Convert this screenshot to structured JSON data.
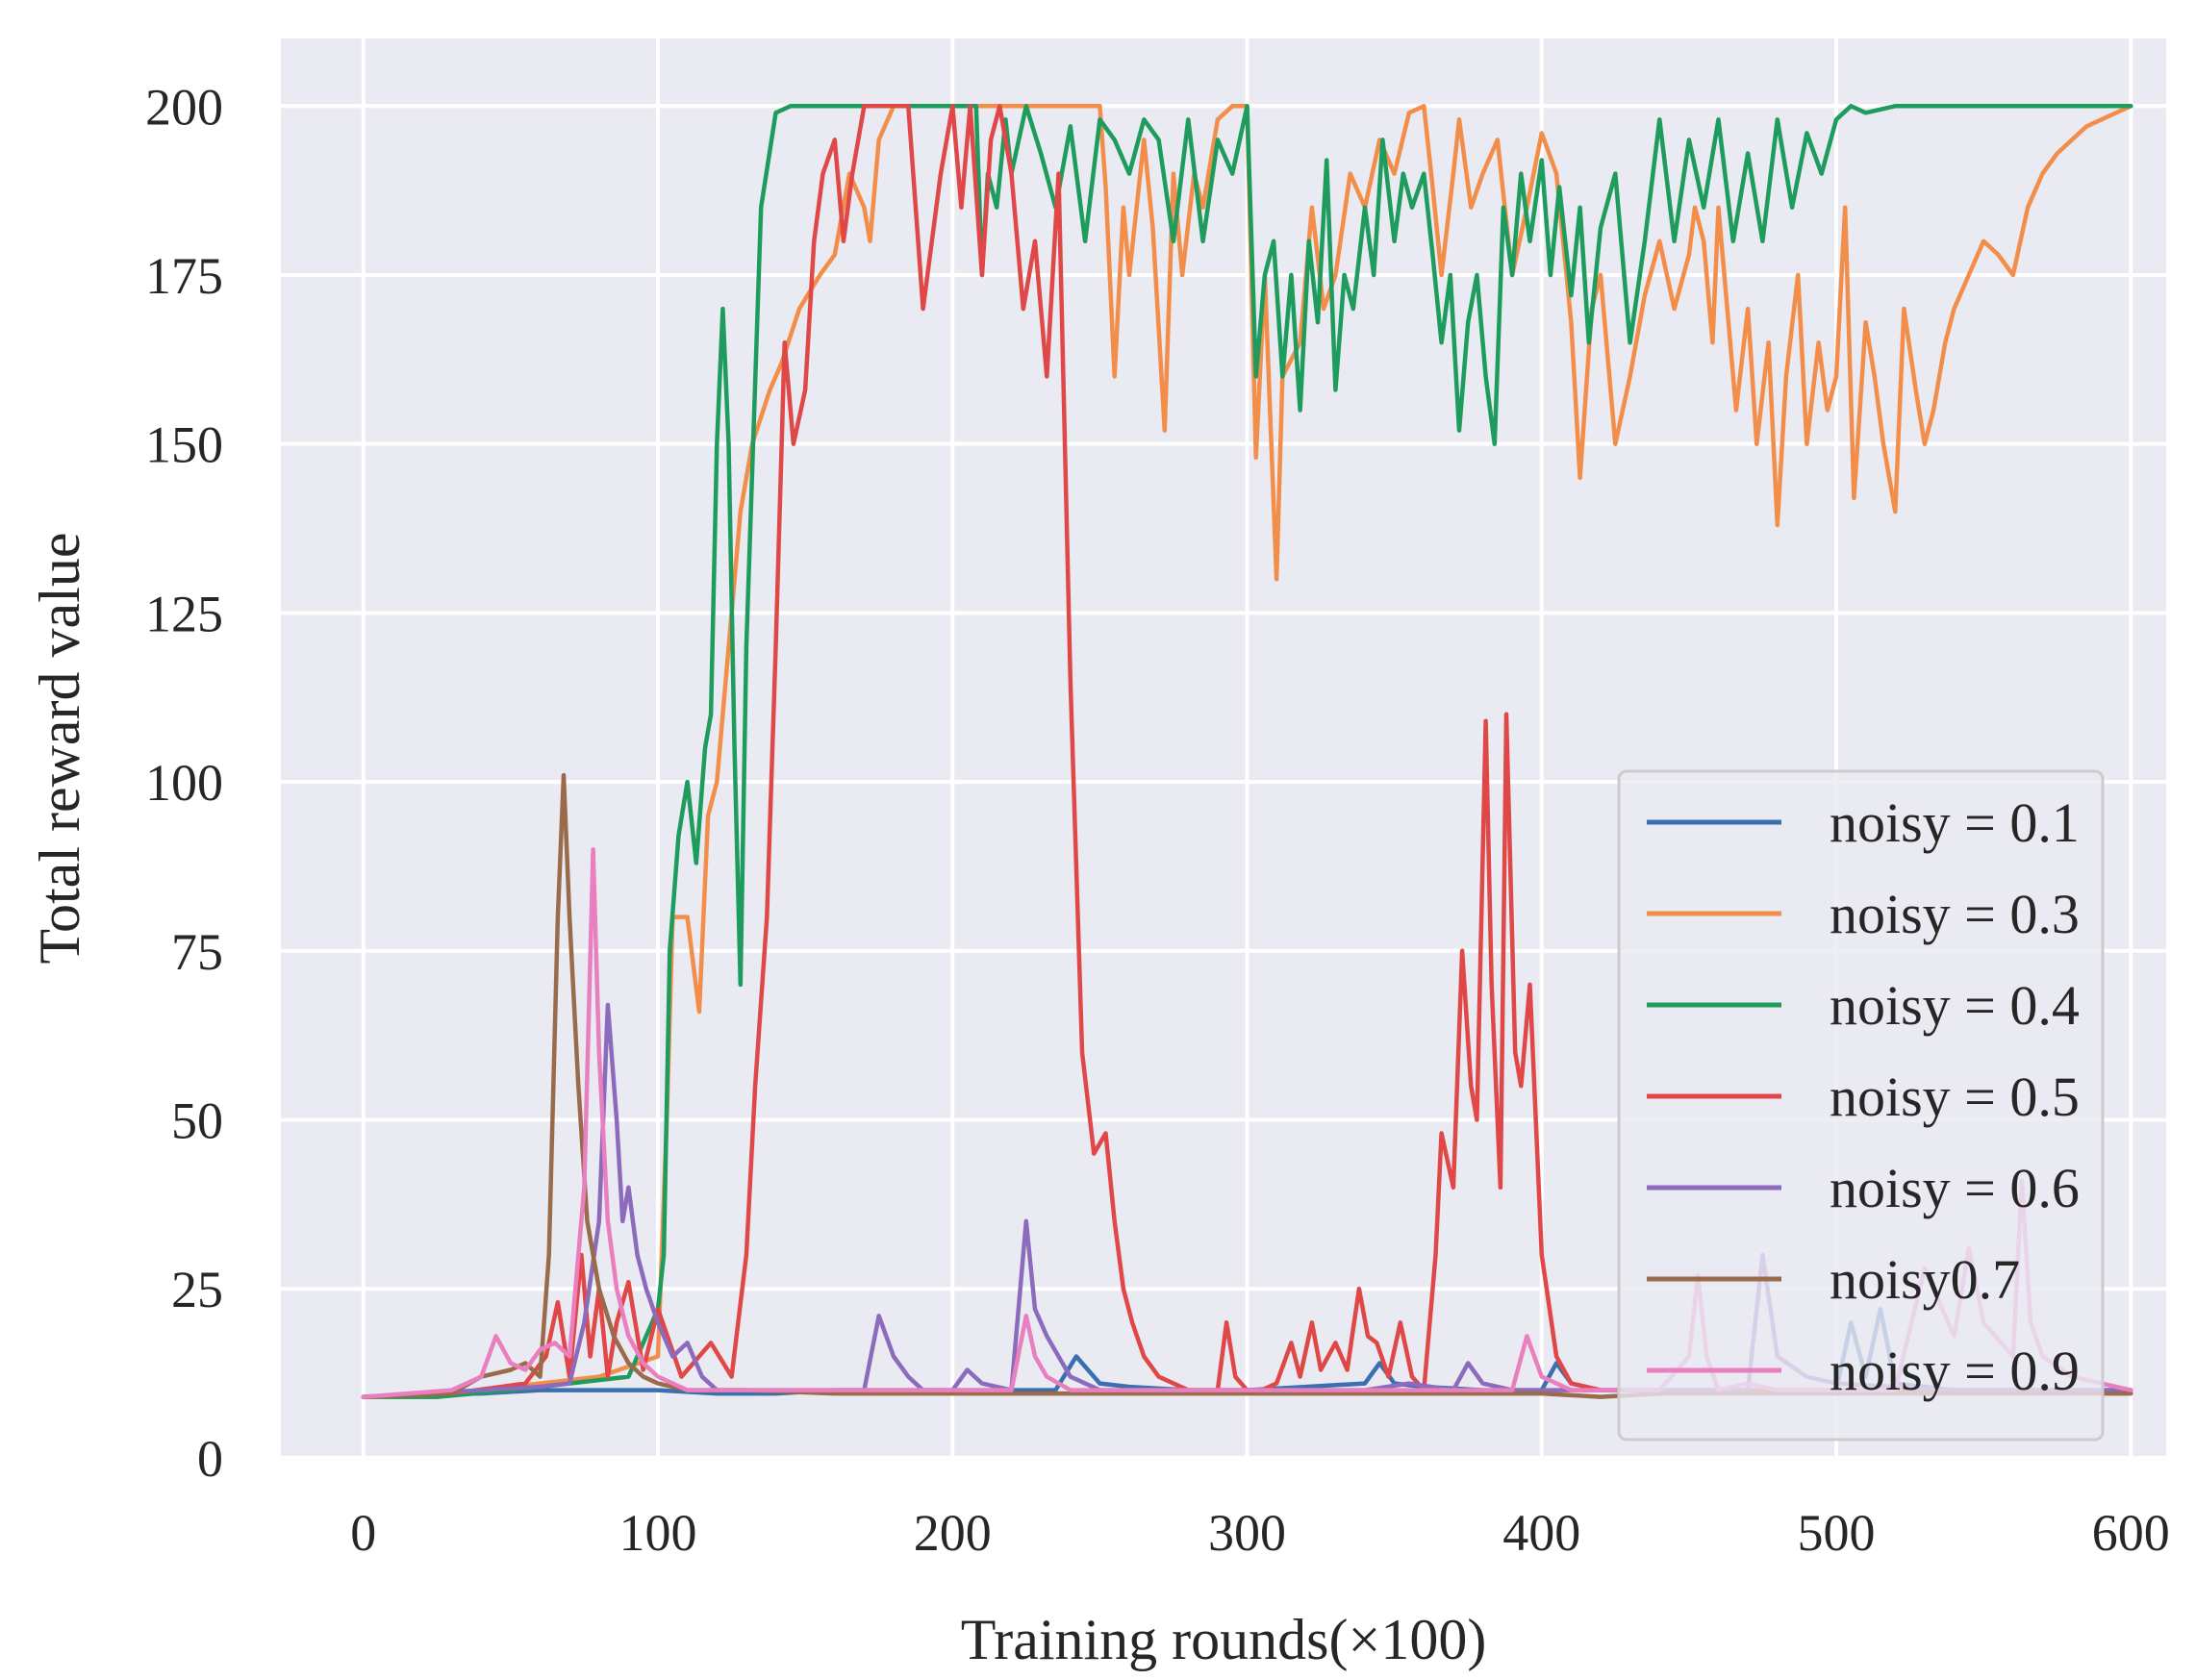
{
  "chart_data": {
    "type": "line",
    "title": "",
    "xlabel": "Training rounds(×100)",
    "ylabel": "Total reward value",
    "xlim": [
      -28,
      612
    ],
    "ylim": [
      -0.3,
      210
    ],
    "xticks": [
      0,
      100,
      200,
      300,
      400,
      500,
      600
    ],
    "xtick_labels": [
      "0",
      "100",
      "200",
      "300",
      "400",
      "500",
      "600"
    ],
    "yticks": [
      0,
      25,
      50,
      75,
      100,
      125,
      150,
      175,
      200
    ],
    "ytick_labels": [
      "0",
      "25",
      "50",
      "75",
      "100",
      "125",
      "150",
      "175",
      "200"
    ],
    "grid": true,
    "legend_position": "lower-right",
    "series": [
      {
        "name": "noisy = 0.1",
        "color": "#3a6fb0",
        "x": [
          0,
          20,
          40,
          60,
          80,
          100,
          120,
          140,
          160,
          180,
          200,
          220,
          235,
          242,
          250,
          260,
          280,
          300,
          320,
          340,
          345,
          350,
          360,
          380,
          400,
          405,
          410,
          420,
          440,
          460,
          480,
          500,
          505,
          510,
          515,
          520,
          540,
          560,
          580,
          600
        ],
        "y": [
          9,
          9.5,
          9.5,
          10,
          10,
          10,
          9.5,
          9.5,
          10,
          10,
          10,
          10,
          10,
          15,
          11,
          10.5,
          10,
          10,
          10.5,
          11,
          14,
          11,
          10.5,
          10,
          10,
          14,
          11,
          10,
          10,
          10,
          10,
          10,
          20,
          12,
          22,
          11,
          10,
          10,
          10,
          10
        ]
      },
      {
        "name": "noisy = 0.3",
        "color": "#f28e49",
        "x": [
          0,
          25,
          40,
          60,
          80,
          100,
          103,
          105,
          110,
          114,
          117,
          120,
          125,
          128,
          132,
          138,
          142,
          148,
          155,
          160,
          165,
          170,
          172,
          175,
          180,
          190,
          200,
          210,
          220,
          230,
          240,
          250,
          252,
          255,
          258,
          260,
          265,
          268,
          272,
          275,
          278,
          282,
          285,
          290,
          295,
          300,
          303,
          306,
          310,
          312,
          318,
          322,
          326,
          330,
          335,
          340,
          345,
          350,
          355,
          360,
          363,
          366,
          370,
          372,
          376,
          380,
          385,
          390,
          395,
          400,
          405,
          410,
          413,
          417,
          420,
          425,
          430,
          435,
          440,
          445,
          450,
          452,
          455,
          458,
          460,
          463,
          466,
          470,
          473,
          477,
          480,
          483,
          487,
          490,
          494,
          497,
          500,
          503,
          506,
          510,
          513,
          516,
          520,
          523,
          527,
          530,
          533,
          537,
          540,
          545,
          550,
          555,
          560,
          565,
          570,
          575,
          580,
          585,
          590,
          595,
          600
        ],
        "y": [
          9,
          9,
          10,
          11,
          12,
          15,
          50,
          80,
          80,
          66,
          95,
          100,
          125,
          140,
          150,
          158,
          162,
          170,
          175,
          178,
          190,
          185,
          180,
          195,
          200,
          200,
          200,
          200,
          200,
          200,
          200,
          200,
          188,
          160,
          185,
          175,
          195,
          182,
          152,
          190,
          175,
          190,
          185,
          198,
          200,
          200,
          148,
          175,
          130,
          160,
          165,
          185,
          170,
          175,
          190,
          185,
          195,
          190,
          199,
          200,
          188,
          175,
          190,
          198,
          185,
          190,
          195,
          175,
          185,
          196,
          190,
          168,
          145,
          170,
          175,
          150,
          160,
          172,
          180,
          170,
          178,
          185,
          180,
          165,
          185,
          170,
          155,
          170,
          150,
          165,
          138,
          160,
          175,
          150,
          165,
          155,
          160,
          185,
          142,
          168,
          160,
          150,
          140,
          170,
          158,
          150,
          155,
          165,
          170,
          175,
          180,
          178,
          175,
          185,
          190,
          193,
          195,
          197,
          198,
          199,
          200
        ]
      },
      {
        "name": "noisy = 0.4",
        "color": "#1e9c5d",
        "x": [
          0,
          25,
          50,
          70,
          90,
          100,
          102,
          104,
          107,
          110,
          113,
          116,
          118,
          120,
          122,
          124,
          126,
          128,
          130,
          135,
          140,
          145,
          150,
          160,
          170,
          180,
          190,
          200,
          205,
          208,
          210,
          212,
          215,
          218,
          220,
          225,
          230,
          235,
          240,
          245,
          250,
          255,
          260,
          265,
          270,
          275,
          280,
          285,
          290,
          295,
          300,
          303,
          306,
          309,
          312,
          315,
          318,
          321,
          324,
          327,
          330,
          333,
          336,
          340,
          343,
          346,
          350,
          353,
          356,
          360,
          363,
          366,
          369,
          372,
          375,
          378,
          381,
          384,
          387,
          390,
          393,
          396,
          400,
          403,
          406,
          410,
          413,
          416,
          420,
          425,
          430,
          435,
          440,
          445,
          450,
          455,
          460,
          465,
          470,
          475,
          480,
          485,
          490,
          495,
          500,
          505,
          510,
          520,
          540,
          560,
          580,
          600
        ],
        "y": [
          9,
          9,
          10,
          11,
          12,
          22,
          30,
          75,
          92,
          100,
          88,
          105,
          110,
          150,
          170,
          150,
          105,
          70,
          120,
          185,
          199,
          200,
          200,
          200,
          200,
          200,
          200,
          200,
          200,
          200,
          175,
          190,
          185,
          198,
          190,
          200,
          193,
          185,
          197,
          180,
          198,
          195,
          190,
          198,
          195,
          180,
          198,
          180,
          195,
          190,
          200,
          160,
          175,
          180,
          160,
          175,
          155,
          180,
          168,
          192,
          158,
          175,
          170,
          185,
          175,
          195,
          180,
          190,
          185,
          190,
          178,
          165,
          175,
          152,
          168,
          175,
          160,
          150,
          185,
          175,
          190,
          180,
          192,
          175,
          188,
          172,
          185,
          165,
          182,
          190,
          165,
          180,
          198,
          180,
          195,
          185,
          198,
          180,
          193,
          180,
          198,
          185,
          196,
          190,
          198,
          200,
          199,
          200,
          200,
          200,
          200,
          200
        ]
      },
      {
        "name": "noisy = 0.5",
        "color": "#e04848",
        "x": [
          0,
          30,
          55,
          62,
          66,
          70,
          74,
          77,
          80,
          83,
          86,
          90,
          95,
          100,
          108,
          118,
          125,
          130,
          133,
          137,
          140,
          143,
          146,
          150,
          153,
          156,
          160,
          163,
          166,
          170,
          175,
          180,
          185,
          190,
          193,
          196,
          200,
          203,
          206,
          210,
          213,
          216,
          220,
          224,
          228,
          232,
          236,
          240,
          244,
          248,
          252,
          255,
          258,
          261,
          265,
          270,
          275,
          280,
          285,
          290,
          293,
          296,
          300,
          305,
          310,
          315,
          318,
          322,
          325,
          330,
          334,
          338,
          341,
          344,
          348,
          352,
          356,
          360,
          364,
          366,
          370,
          373,
          376,
          378,
          381,
          383,
          386,
          388,
          391,
          393,
          396,
          400,
          405,
          410,
          420,
          440,
          460,
          480,
          500,
          530,
          560,
          600
        ],
        "y": [
          9,
          9.5,
          11,
          15,
          23,
          12,
          30,
          15,
          25,
          12,
          20,
          26,
          13,
          22,
          12,
          17,
          12,
          30,
          55,
          80,
          120,
          165,
          150,
          158,
          180,
          190,
          195,
          180,
          190,
          200,
          200,
          200,
          200,
          170,
          180,
          190,
          200,
          185,
          200,
          175,
          195,
          200,
          190,
          170,
          180,
          160,
          190,
          115,
          60,
          45,
          48,
          35,
          25,
          20,
          15,
          12,
          11,
          10,
          10,
          10,
          20,
          12,
          10,
          10,
          11,
          17,
          12,
          20,
          13,
          17,
          13,
          25,
          18,
          17,
          12,
          20,
          12,
          10,
          30,
          48,
          40,
          75,
          55,
          50,
          109,
          70,
          40,
          110,
          60,
          55,
          70,
          30,
          15,
          11,
          10,
          10,
          10,
          10,
          10,
          10,
          10,
          10
        ]
      },
      {
        "name": "noisy = 0.6",
        "color": "#8c6bbd",
        "x": [
          0,
          40,
          60,
          70,
          75,
          80,
          83,
          86,
          88,
          90,
          93,
          96,
          100,
          105,
          110,
          115,
          120,
          125,
          140,
          160,
          170,
          175,
          180,
          185,
          190,
          200,
          205,
          210,
          220,
          225,
          228,
          232,
          236,
          240,
          245,
          250,
          260,
          280,
          300,
          340,
          355,
          370,
          375,
          380,
          390,
          400,
          430,
          460,
          470,
          475,
          480,
          490,
          500,
          540,
          570,
          600
        ],
        "y": [
          9,
          10,
          10.5,
          11,
          20,
          35,
          67,
          50,
          35,
          40,
          30,
          25,
          20,
          15,
          17,
          12,
          10,
          10,
          10,
          10,
          10,
          21,
          15,
          12,
          10,
          10,
          13,
          11,
          10,
          35,
          22,
          18,
          15,
          12,
          11,
          10,
          10,
          10,
          10,
          10,
          11,
          10,
          14,
          11,
          10,
          10,
          10,
          10,
          10,
          30,
          15,
          12,
          11,
          10,
          10,
          10
        ]
      },
      {
        "name": "noisy0.7",
        "color": "#9a6b4b",
        "x": [
          0,
          30,
          40,
          50,
          55,
          60,
          63,
          66,
          68,
          70,
          73,
          76,
          80,
          85,
          90,
          95,
          100,
          110,
          130,
          160,
          200,
          250,
          300,
          350,
          400,
          420,
          440,
          460,
          480,
          500,
          540,
          580,
          600
        ],
        "y": [
          9,
          9.5,
          12,
          13,
          14,
          12,
          30,
          80,
          101,
          80,
          55,
          35,
          25,
          18,
          14,
          12,
          11,
          10,
          10,
          9.5,
          9.5,
          9.5,
          9.5,
          9.5,
          9.5,
          9,
          9.5,
          9.5,
          9.5,
          9.5,
          9.5,
          9.5,
          9.5
        ]
      },
      {
        "name": "noisy = 0.9",
        "color": "#ea7fc0",
        "x": [
          0,
          30,
          40,
          45,
          50,
          55,
          60,
          65,
          70,
          75,
          78,
          80,
          83,
          86,
          90,
          95,
          100,
          110,
          130,
          160,
          200,
          220,
          225,
          228,
          232,
          240,
          260,
          300,
          350,
          390,
          395,
          400,
          410,
          440,
          450,
          453,
          456,
          460,
          470,
          480,
          500,
          520,
          530,
          540,
          545,
          550,
          560,
          563,
          566,
          570,
          580,
          600
        ],
        "y": [
          9,
          10,
          12,
          18,
          14,
          13,
          16,
          17,
          15,
          40,
          90,
          60,
          35,
          25,
          18,
          14,
          12,
          10,
          10,
          10,
          10,
          10,
          21,
          15,
          12,
          10,
          10,
          10,
          10,
          10,
          18,
          12,
          10,
          10,
          15,
          27,
          15,
          10,
          11,
          10,
          10,
          10,
          28,
          18,
          31,
          20,
          15,
          41,
          20,
          15,
          12,
          10
        ]
      }
    ]
  }
}
